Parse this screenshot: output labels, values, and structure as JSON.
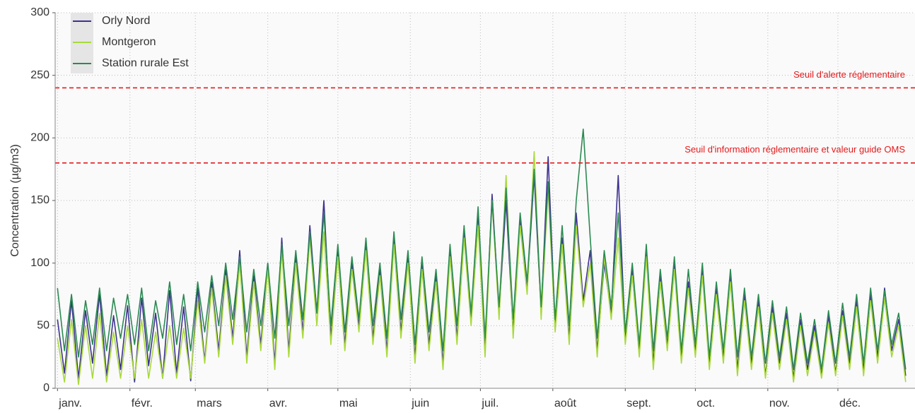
{
  "chart_data": {
    "type": "line",
    "y_label": "Concentration (µg/m3)",
    "x": [
      1,
      4,
      7,
      10,
      13,
      16,
      19,
      22,
      25,
      28,
      31,
      34,
      37,
      40,
      43,
      46,
      49,
      52,
      55,
      58,
      61,
      64,
      67,
      70,
      73,
      76,
      79,
      82,
      85,
      88,
      91,
      94,
      97,
      100,
      103,
      106,
      109,
      112,
      115,
      118,
      121,
      124,
      127,
      130,
      133,
      136,
      139,
      142,
      145,
      148,
      151,
      154,
      157,
      160,
      163,
      166,
      169,
      172,
      175,
      178,
      181,
      184,
      187,
      190,
      193,
      196,
      199,
      202,
      205,
      208,
      211,
      214,
      217,
      220,
      223,
      226,
      229,
      232,
      235,
      238,
      241,
      244,
      247,
      250,
      253,
      256,
      259,
      262,
      265,
      268,
      271,
      274,
      277,
      280,
      283,
      286,
      289,
      292,
      295,
      298,
      301,
      304,
      307,
      310,
      313,
      316,
      319,
      322,
      325,
      328,
      331,
      334,
      337,
      340,
      343,
      346,
      349,
      352,
      355,
      358,
      361,
      364
    ],
    "series": [
      {
        "name": "Orly Nord",
        "color": "#3d3290",
        "values": [
          55,
          12,
          70,
          8,
          62,
          20,
          75,
          10,
          58,
          15,
          66,
          5,
          72,
          18,
          60,
          8,
          78,
          12,
          65,
          6,
          80,
          22,
          85,
          30,
          95,
          40,
          110,
          25,
          90,
          35,
          100,
          20,
          120,
          30,
          105,
          45,
          130,
          60,
          150,
          40,
          110,
          35,
          100,
          50,
          115,
          40,
          95,
          30,
          120,
          45,
          105,
          25,
          100,
          35,
          90,
          20,
          110,
          40,
          125,
          55,
          140,
          30,
          155,
          60,
          150,
          45,
          135,
          80,
          170,
          60,
          185,
          50,
          120,
          40,
          140,
          70,
          110,
          30,
          100,
          60,
          170,
          40,
          95,
          30,
          110,
          20,
          90,
          35,
          100,
          25,
          85,
          30,
          95,
          20,
          80,
          25,
          90,
          15,
          75,
          20,
          70,
          10,
          65,
          20,
          60,
          8,
          55,
          15,
          50,
          10,
          58,
          12,
          62,
          20,
          70,
          15,
          75,
          25,
          80,
          30,
          55,
          10
        ]
      },
      {
        "name": "Montgeron",
        "color": "#a8d93b",
        "values": [
          40,
          5,
          55,
          3,
          50,
          8,
          60,
          5,
          45,
          8,
          50,
          8,
          55,
          8,
          45,
          8,
          50,
          8,
          48,
          8,
          70,
          20,
          80,
          25,
          90,
          35,
          100,
          20,
          85,
          30,
          95,
          15,
          110,
          25,
          100,
          40,
          120,
          50,
          125,
          35,
          105,
          30,
          95,
          45,
          110,
          35,
          90,
          25,
          115,
          40,
          100,
          20,
          95,
          30,
          85,
          15,
          105,
          35,
          120,
          50,
          130,
          25,
          150,
          55,
          170,
          40,
          130,
          75,
          189,
          55,
          160,
          45,
          115,
          35,
          130,
          65,
          100,
          25,
          105,
          55,
          120,
          35,
          90,
          25,
          105,
          15,
          85,
          30,
          95,
          20,
          80,
          25,
          90,
          15,
          75,
          20,
          85,
          10,
          70,
          15,
          65,
          8,
          60,
          15,
          55,
          5,
          50,
          10,
          45,
          8,
          52,
          10,
          58,
          15,
          65,
          10,
          70,
          20,
          72,
          25,
          50,
          5
        ]
      },
      {
        "name": "Station rurale Est",
        "color": "#2b8a52",
        "values": [
          80,
          30,
          75,
          25,
          70,
          35,
          80,
          30,
          72,
          40,
          75,
          35,
          80,
          30,
          70,
          40,
          85,
          35,
          75,
          30,
          85,
          45,
          90,
          50,
          100,
          55,
          105,
          45,
          95,
          50,
          100,
          40,
          115,
          50,
          110,
          55,
          125,
          60,
          140,
          50,
          115,
          45,
          105,
          55,
          120,
          50,
          100,
          40,
          125,
          55,
          110,
          35,
          105,
          45,
          95,
          30,
          115,
          50,
          130,
          60,
          145,
          40,
          150,
          65,
          160,
          55,
          140,
          85,
          175,
          65,
          165,
          55,
          130,
          50,
          150,
          207,
          120,
          40,
          110,
          65,
          140,
          45,
          100,
          35,
          115,
          30,
          95,
          40,
          105,
          30,
          95,
          35,
          100,
          25,
          85,
          30,
          95,
          25,
          80,
          25,
          75,
          20,
          70,
          25,
          65,
          15,
          60,
          20,
          55,
          15,
          62,
          20,
          68,
          25,
          75,
          20,
          80,
          30,
          78,
          35,
          60,
          15
        ]
      }
    ],
    "hlines": [
      {
        "value": 240,
        "label": "Seuil d'alerte réglementaire",
        "color": "#e41a1c"
      },
      {
        "value": 180,
        "label": "Seuil d'information réglementaire et valeur guide OMS",
        "color": "#e41a1c"
      }
    ],
    "xlim": [
      0,
      368
    ],
    "xticks": [
      {
        "value": 1,
        "label": "janv."
      },
      {
        "value": 32,
        "label": "févr."
      },
      {
        "value": 60,
        "label": "mars"
      },
      {
        "value": 91,
        "label": "avr."
      },
      {
        "value": 121,
        "label": "mai"
      },
      {
        "value": 152,
        "label": "juin"
      },
      {
        "value": 182,
        "label": "juil."
      },
      {
        "value": 213,
        "label": "août"
      },
      {
        "value": 244,
        "label": "sept."
      },
      {
        "value": 274,
        "label": "oct."
      },
      {
        "value": 305,
        "label": "nov."
      },
      {
        "value": 335,
        "label": "déc."
      }
    ],
    "ylim": [
      0,
      300
    ],
    "yticks": [
      0,
      50,
      100,
      150,
      200,
      250,
      300
    ],
    "grid": true,
    "legend": "top-left"
  }
}
